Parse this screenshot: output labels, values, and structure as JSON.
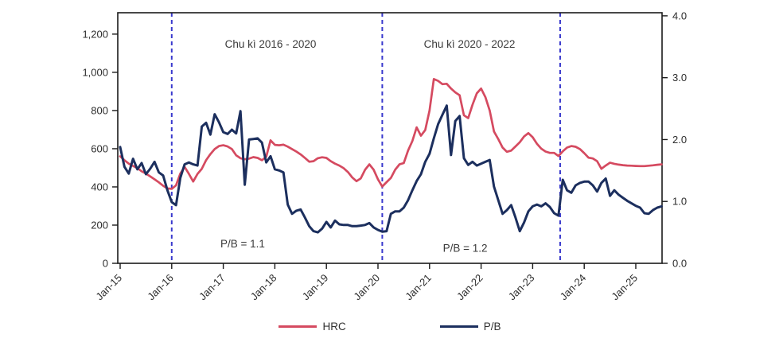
{
  "chart_data": {
    "type": "line",
    "title": "",
    "x_unit": "month",
    "x_start": "Jan-15",
    "x_end": "Jul-25",
    "x_tick_labels": [
      "Jan-15",
      "Jan-16",
      "Jan-17",
      "Jan-18",
      "Jan-19",
      "Jan-20",
      "Jan-21",
      "Jan-22",
      "Jan-23",
      "Jan-24",
      "Jan-25"
    ],
    "left_axis": {
      "tick_values": [
        0,
        200,
        400,
        600,
        800,
        1000,
        1200
      ],
      "tick_labels": [
        "0",
        "200",
        "400",
        "600",
        "800",
        "1,000",
        "1,200"
      ],
      "range": [
        0,
        1312
      ]
    },
    "right_axis": {
      "tick_values": [
        0,
        1,
        2,
        3,
        4
      ],
      "tick_labels": [
        "0.0",
        "1.0",
        "2.0",
        "3.0",
        "4.0"
      ],
      "range": [
        0,
        4.05
      ]
    },
    "series": [
      {
        "name": "HRC",
        "axis": "left",
        "color": "#d54a60",
        "values": [
          560,
          540,
          522,
          510,
          498,
          482,
          470,
          455,
          440,
          424,
          406,
          392,
          390,
          408,
          470,
          505,
          468,
          428,
          468,
          495,
          540,
          572,
          598,
          614,
          618,
          612,
          598,
          565,
          550,
          545,
          548,
          556,
          552,
          540,
          558,
          644,
          620,
          618,
          621,
          611,
          598,
          585,
          570,
          552,
          532,
          535,
          550,
          555,
          552,
          535,
          522,
          512,
          498,
          478,
          450,
          430,
          445,
          490,
          518,
          490,
          440,
          402,
          425,
          447,
          490,
          518,
          525,
          590,
          640,
          712,
          668,
          698,
          800,
          965,
          955,
          938,
          940,
          915,
          895,
          880,
          775,
          760,
          830,
          890,
          915,
          870,
          800,
          690,
          650,
          606,
          584,
          590,
          612,
          634,
          664,
          682,
          660,
          626,
          600,
          585,
          578,
          578,
          562,
          586,
          606,
          614,
          610,
          598,
          577,
          553,
          549,
          535,
          495,
          512,
          527,
          521,
          517,
          514,
          512,
          511,
          510,
          509,
          509,
          511,
          513,
          516,
          518
        ]
      },
      {
        "name": "P/B",
        "axis": "right",
        "color": "#1c2f5e",
        "values": [
          1.88,
          1.56,
          1.45,
          1.69,
          1.52,
          1.62,
          1.44,
          1.53,
          1.64,
          1.47,
          1.42,
          1.18,
          0.99,
          0.94,
          1.38,
          1.6,
          1.63,
          1.6,
          1.58,
          2.21,
          2.27,
          2.08,
          2.41,
          2.28,
          2.12,
          2.09,
          2.16,
          2.1,
          2.46,
          1.27,
          2.0,
          2.01,
          2.02,
          1.95,
          1.63,
          1.73,
          1.52,
          1.5,
          1.47,
          0.95,
          0.8,
          0.85,
          0.87,
          0.74,
          0.6,
          0.52,
          0.5,
          0.56,
          0.67,
          0.58,
          0.69,
          0.63,
          0.62,
          0.62,
          0.6,
          0.6,
          0.61,
          0.62,
          0.65,
          0.58,
          0.54,
          0.51,
          0.52,
          0.8,
          0.84,
          0.84,
          0.9,
          1.02,
          1.18,
          1.33,
          1.44,
          1.64,
          1.77,
          2.02,
          2.25,
          2.4,
          2.55,
          1.75,
          2.3,
          2.38,
          1.7,
          1.59,
          1.64,
          1.58,
          1.61,
          1.64,
          1.67,
          1.24,
          1.02,
          0.8,
          0.86,
          0.94,
          0.74,
          0.52,
          0.66,
          0.84,
          0.92,
          0.95,
          0.92,
          0.97,
          0.91,
          0.81,
          0.77,
          1.35,
          1.18,
          1.14,
          1.26,
          1.3,
          1.32,
          1.32,
          1.26,
          1.16,
          1.3,
          1.37,
          1.09,
          1.18,
          1.11,
          1.06,
          1.01,
          0.97,
          0.93,
          0.9,
          0.81,
          0.8,
          0.86,
          0.9,
          0.92
        ]
      }
    ],
    "cycle_dividers": {
      "color": "#3939cd",
      "style": "dashed",
      "x_months": [
        12,
        61,
        102.4
      ]
    },
    "annotations": [
      {
        "text": "Chu kì 2016 - 2020",
        "x_month": 35.0,
        "y_left": 1145
      },
      {
        "text": "Chu kì 2020 - 2022",
        "x_month": 81.3,
        "y_left": 1145
      },
      {
        "text": "P/B = 1.1",
        "x_month": 28.5,
        "y_left": 100
      },
      {
        "text": "P/B = 1.2",
        "x_month": 80.3,
        "y_left": 78
      }
    ],
    "legend": {
      "position": "bottom-center",
      "items": [
        {
          "label": "HRC",
          "color": "#d54a60"
        },
        {
          "label": "P/B",
          "color": "#1c2f5e"
        }
      ]
    },
    "axis_color": "#1a1a1a",
    "grid": false
  }
}
